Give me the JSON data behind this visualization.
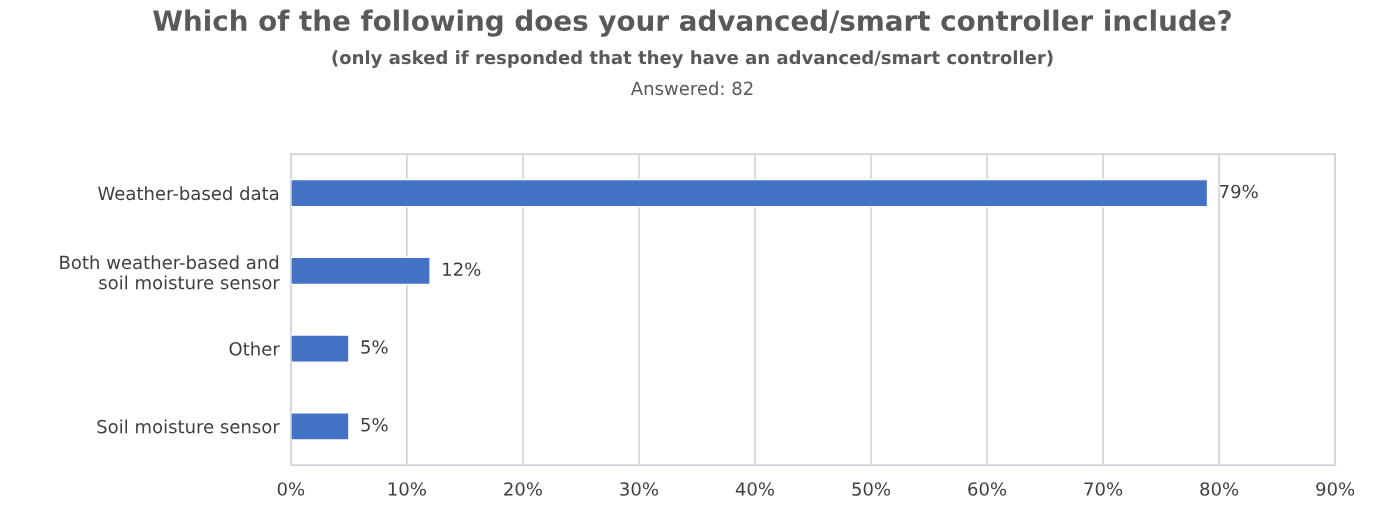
{
  "chart_data": {
    "type": "bar",
    "orientation": "horizontal",
    "title": "Which of the following does your advanced/smart controller include?",
    "subtitle": "(only asked if responded that they have an advanced/smart controller)",
    "annotations": [
      "Answered: 82"
    ],
    "categories": [
      "Weather-based data",
      "Both weather-based and\nsoil moisture sensor",
      "Other",
      "Soil moisture sensor"
    ],
    "values": [
      79,
      12,
      5,
      5
    ],
    "value_labels": [
      "79%",
      "12%",
      "5%",
      "5%"
    ],
    "color": "#4472c4",
    "xlim": [
      0,
      90
    ],
    "xticks": [
      {
        "value": 0,
        "label": "0%"
      },
      {
        "value": 10,
        "label": "10%"
      },
      {
        "value": 20,
        "label": "20%"
      },
      {
        "value": 30,
        "label": "30%"
      },
      {
        "value": 40,
        "label": "40%"
      },
      {
        "value": 50,
        "label": "50%"
      },
      {
        "value": 60,
        "label": "60%"
      },
      {
        "value": 70,
        "label": "70%"
      },
      {
        "value": 80,
        "label": "80%"
      },
      {
        "value": 90,
        "label": "90%"
      }
    ],
    "grid": "x"
  }
}
